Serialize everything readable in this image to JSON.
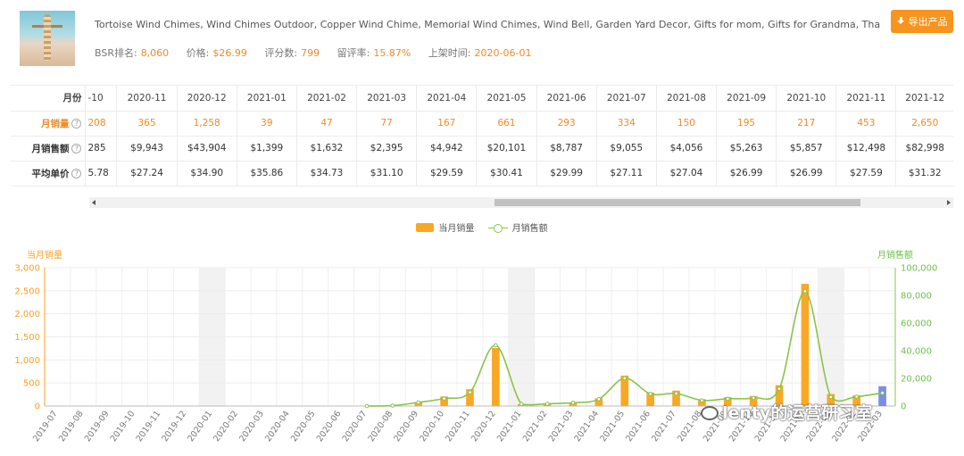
{
  "product": {
    "title": "Tortoise Wind Chimes, Wind Chimes Outdoor, Copper Wind Chime, Memorial Wind Chimes, Wind Bell, Garden Yard Decor, Gifts for mom, Gifts for Grandma, Thanksgiving...",
    "bsr_label": "BSR排名:",
    "bsr": "8,060",
    "price_label": "价格:",
    "price": "$26.99",
    "reviews_label": "评分数:",
    "reviews": "799",
    "rate_label": "留评率:",
    "rate": "15.87%",
    "launch_label": "上架时间:",
    "launch": "2020-06-01",
    "image_icon": "product-photo"
  },
  "toolbar": {
    "export_label": "导出产品",
    "export_icon": "download-icon"
  },
  "table": {
    "month_label": "月份",
    "sales_label": "月销量",
    "revenue_label": "月销售额",
    "avg_label": "平均单价",
    "help_glyph": "?",
    "months": [
      "-10",
      "2020-11",
      "2020-12",
      "2021-01",
      "2021-02",
      "2021-03",
      "2021-04",
      "2021-05",
      "2021-06",
      "2021-07",
      "2021-08",
      "2021-09",
      "2021-10",
      "2021-11",
      "2021-12"
    ],
    "sales": [
      "208",
      "365",
      "1,258",
      "39",
      "47",
      "77",
      "167",
      "661",
      "293",
      "334",
      "150",
      "195",
      "217",
      "453",
      "2,650"
    ],
    "revenue": [
      "285",
      "$9,943",
      "$43,904",
      "$1,399",
      "$1,632",
      "$2,395",
      "$4,942",
      "$20,101",
      "$8,787",
      "$9,055",
      "$4,056",
      "$5,263",
      "$5,857",
      "$12,498",
      "$82,998"
    ],
    "avg_price": [
      "5.78",
      "$27.24",
      "$34.90",
      "$35.86",
      "$34.73",
      "$31.10",
      "$29.59",
      "$30.41",
      "$29.99",
      "$27.11",
      "$27.04",
      "$26.99",
      "$26.99",
      "$27.59",
      "$31.32"
    ]
  },
  "legend": {
    "bar_label": "当月销量",
    "line_label": "月销售额"
  },
  "watermark": {
    "text": "lenty的运营研习室"
  },
  "colors": {
    "bar": "#f9a825",
    "line": "#8bc34a",
    "accent": "#f7941d",
    "highlight": "#7b8fe0"
  },
  "chart_data": {
    "type": "bar",
    "left_axis_title": "当月销量",
    "right_axis_title": "月销售额",
    "left_ylim": [
      0,
      3000
    ],
    "left_ticks": [
      "0",
      "500",
      "1,000",
      "1,500",
      "2,000",
      "2,500",
      "3,000"
    ],
    "right_ylim": [
      0,
      100000
    ],
    "right_ticks": [
      "0",
      "20,000",
      "40,000",
      "60,000",
      "80,000",
      "100,000"
    ],
    "grid": true,
    "legend_position": "top-center",
    "categories": [
      "2019-07",
      "2019-08",
      "2019-09",
      "2019-10",
      "2019-11",
      "2019-12",
      "2020-01",
      "2020-02",
      "2020-03",
      "2020-04",
      "2020-05",
      "2020-06",
      "2020-07",
      "2020-08",
      "2020-09",
      "2020-10",
      "2020-11",
      "2020-12",
      "2021-01",
      "2021-02",
      "2021-03",
      "2021-04",
      "2021-05",
      "2021-06",
      "2021-07",
      "2021-08",
      "2021-09",
      "2021-10",
      "2021-11",
      "2021-12",
      "2022-01",
      "2022-02",
      "2022-03"
    ],
    "series": [
      {
        "name": "当月销量",
        "type": "bar",
        "axis": "left",
        "values": [
          0,
          0,
          0,
          0,
          0,
          0,
          0,
          0,
          0,
          0,
          0,
          0,
          0,
          10,
          85,
          208,
          365,
          1258,
          39,
          47,
          77,
          167,
          661,
          293,
          334,
          150,
          195,
          217,
          453,
          2650,
          260,
          230,
          430
        ]
      },
      {
        "name": "月销售额",
        "type": "line",
        "axis": "right",
        "values": [
          0,
          0,
          0,
          0,
          0,
          0,
          0,
          0,
          0,
          0,
          0,
          0,
          0,
          300,
          2600,
          5400,
          9943,
          43904,
          1399,
          1632,
          2395,
          4942,
          20101,
          8787,
          9055,
          4056,
          5263,
          5857,
          12498,
          82998,
          6500,
          6800,
          9500
        ]
      }
    ]
  }
}
